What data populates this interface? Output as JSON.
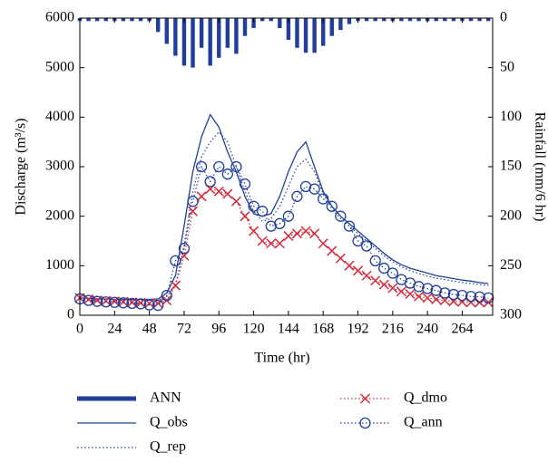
{
  "chart_data": {
    "type": "line",
    "x_label": "Time (hr)",
    "y_label": "Discharge (m³/s)",
    "y2_label": "Rainfall (mm/6 hr)",
    "x": [
      0,
      6,
      12,
      18,
      24,
      30,
      36,
      42,
      48,
      54,
      60,
      66,
      72,
      78,
      84,
      90,
      96,
      102,
      108,
      114,
      120,
      126,
      132,
      138,
      144,
      150,
      156,
      162,
      168,
      174,
      180,
      186,
      192,
      198,
      204,
      210,
      216,
      222,
      228,
      234,
      240,
      246,
      252,
      258,
      264,
      270,
      276,
      282
    ],
    "xlim": [
      0,
      285
    ],
    "xticks": [
      0,
      24,
      48,
      72,
      96,
      120,
      144,
      168,
      192,
      216,
      240,
      264
    ],
    "ylim": [
      0,
      6000
    ],
    "yticks": [
      0,
      1000,
      2000,
      3000,
      4000,
      5000,
      6000
    ],
    "y2lim": [
      0,
      300
    ],
    "y2ticks": [
      0,
      50,
      100,
      150,
      200,
      250,
      300
    ],
    "y2_inverted": true,
    "series": [
      {
        "name": "ANN",
        "type": "bar",
        "axis": "y2",
        "color": "#1f3f9a",
        "values": [
          3,
          3,
          3,
          3,
          3,
          3,
          3,
          3,
          3,
          14,
          26,
          38,
          48,
          50,
          30,
          48,
          40,
          30,
          36,
          18,
          10,
          3,
          3,
          10,
          22,
          30,
          35,
          35,
          28,
          18,
          12,
          6,
          3,
          3,
          3,
          3,
          3,
          3,
          3,
          3,
          3,
          3,
          3,
          3,
          3,
          3,
          3,
          3
        ]
      },
      {
        "name": "Q_obs",
        "type": "line",
        "color": "#1f3f9a",
        "dash": "solid",
        "values": [
          350,
          340,
          330,
          330,
          320,
          320,
          320,
          320,
          320,
          330,
          450,
          800,
          1800,
          2900,
          3600,
          4050,
          3800,
          3300,
          2900,
          2400,
          2050,
          2000,
          2050,
          2400,
          2900,
          3300,
          3500,
          3000,
          2500,
          2200,
          2000,
          1850,
          1700,
          1550,
          1400,
          1250,
          1120,
          1020,
          950,
          900,
          850,
          800,
          770,
          740,
          710,
          690,
          660,
          640
        ]
      },
      {
        "name": "Q_rep",
        "type": "line",
        "color": "#1f3f9a",
        "dash": "dotted",
        "values": [
          330,
          320,
          310,
          300,
          300,
          300,
          300,
          300,
          300,
          310,
          380,
          600,
          1400,
          2500,
          3200,
          3500,
          3700,
          3500,
          3000,
          2500,
          2100,
          1900,
          1950,
          2200,
          2600,
          3000,
          3150,
          2900,
          2450,
          2150,
          1950,
          1800,
          1650,
          1500,
          1350,
          1200,
          1080,
          980,
          900,
          840,
          790,
          750,
          720,
          690,
          660,
          640,
          620,
          600
        ]
      },
      {
        "name": "Q_dmo",
        "type": "line",
        "color": "#d42a3a",
        "dash": "dotted",
        "marker": "x",
        "values": [
          350,
          320,
          300,
          290,
          280,
          270,
          260,
          250,
          240,
          240,
          300,
          600,
          1200,
          2100,
          2400,
          2550,
          2500,
          2450,
          2300,
          2000,
          1700,
          1500,
          1450,
          1450,
          1600,
          1650,
          1700,
          1650,
          1450,
          1300,
          1150,
          1000,
          900,
          800,
          700,
          620,
          550,
          480,
          430,
          380,
          350,
          320,
          300,
          280,
          270,
          260,
          260,
          260
        ]
      },
      {
        "name": "Q_ann",
        "type": "line",
        "color": "#1f3f9a",
        "dash": "dotted",
        "marker": "o",
        "values": [
          330,
          300,
          280,
          270,
          260,
          250,
          240,
          230,
          210,
          200,
          400,
          1100,
          1350,
          2300,
          3000,
          2700,
          3000,
          2850,
          3000,
          2650,
          2200,
          2100,
          1800,
          1850,
          2000,
          2400,
          2600,
          2550,
          2350,
          2200,
          2000,
          1800,
          1500,
          1400,
          1100,
          950,
          850,
          720,
          650,
          580,
          540,
          500,
          450,
          420,
          400,
          380,
          370,
          350
        ]
      }
    ]
  }
}
